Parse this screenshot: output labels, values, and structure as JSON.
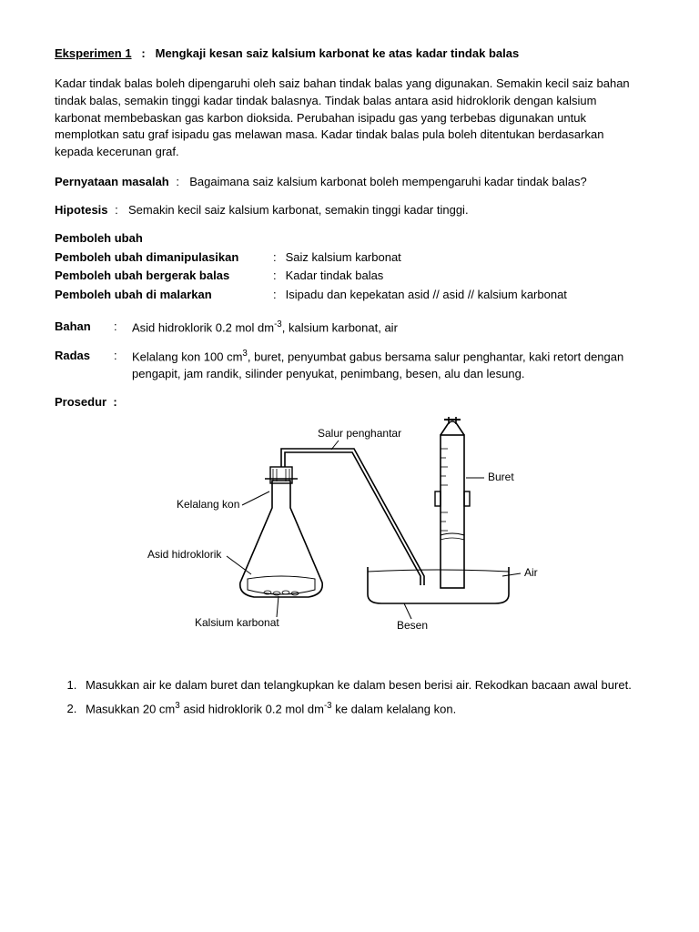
{
  "title": {
    "label": "Eksperimen 1",
    "sep": ":",
    "text": "Mengkaji kesan saiz kalsium karbonat ke atas kadar tindak balas"
  },
  "intro": "Kadar tindak balas boleh dipengaruhi oleh saiz bahan tindak balas yang digunakan. Semakin kecil saiz bahan tindak balas, semakin tinggi kadar tindak balasnya. Tindak balas antara asid hidroklorik dengan kalsium karbonat membebaskan gas karbon dioksida. Perubahan isipadu gas yang terbebas digunakan untuk memplotkan satu graf isipadu gas melawan masa. Kadar tindak balas pula boleh ditentukan berdasarkan kepada kecerunan graf.",
  "problem": {
    "label": "Pernyataan masalah",
    "sep": ":",
    "value": "Bagaimana saiz kalsium karbonat boleh mempengaruhi kadar tindak balas?"
  },
  "hypothesis": {
    "label": "Hipotesis",
    "sep": ":",
    "value": "Semakin kecil saiz kalsium karbonat, semakin tinggi kadar tinggi."
  },
  "vars": {
    "heading": "Pemboleh ubah",
    "rows": [
      {
        "label": "Pemboleh ubah dimanipulasikan",
        "sep": ":",
        "value": "Saiz kalsium karbonat"
      },
      {
        "label": "Pemboleh ubah bergerak balas",
        "sep": ":",
        "value": "Kadar tindak balas"
      },
      {
        "label": "Pemboleh ubah di malarkan",
        "sep": ":",
        "value": "Isipadu dan kepekatan asid //  asid // kalsium karbonat"
      }
    ]
  },
  "bahan": {
    "label": "Bahan",
    "sep": ":",
    "value_html": "Asid hidroklorik 0.2 mol dm<sup>-3</sup>, kalsium karbonat, air"
  },
  "radas": {
    "label": "Radas",
    "sep": ":",
    "value_html": "Kelalang kon 100 cm<sup>3</sup>, buret, penyumbat gabus bersama salur penghantar, kaki retort dengan pengapit, jam randik, silinder penyukat, penimbang, besen, alu dan lesung."
  },
  "procedure": {
    "heading": "Prosedur",
    "sep": ":",
    "diagram": {
      "labels": {
        "salur": "Salur penghantar",
        "kelalang": "Kelalang kon",
        "asid": "Asid hidroklorik",
        "kalsium": "Kalsium karbonat",
        "besen": "Besen",
        "air": "Air",
        "buret": "Buret"
      },
      "colors": {
        "stroke": "#000000",
        "fill_none": "none"
      }
    },
    "steps": [
      "Masukkan air ke dalam buret dan telangkupkan ke dalam besen berisi air. Rekodkan bacaan awal buret.",
      "Masukkan 20 cm<sup>3</sup> asid hidroklorik 0.2 mol dm<sup>-3</sup>  ke dalam kelalang kon."
    ]
  }
}
